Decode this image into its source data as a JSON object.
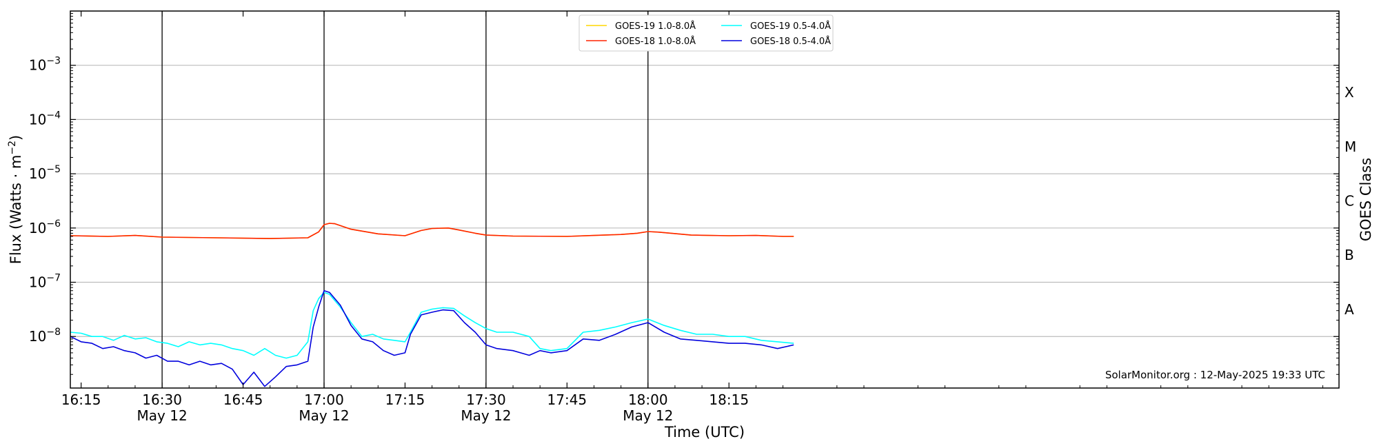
{
  "chart_data": {
    "type": "line",
    "xlabel": "Time (UTC)",
    "ylabel": "Flux (Watts · m",
    "ylabel_sup": "−2",
    "ylabel_tail": ")",
    "ylabel_right": "GOES Class",
    "credit": "SolarMonitor.org : 12-May-2025 19:33 UTC",
    "x_range_minutes": [
      973,
      1208
    ],
    "y_scale": "log",
    "y_range_log10": [
      -8.95,
      -2.0
    ],
    "y_ticks": [
      {
        "exp": -3,
        "label_base": "10",
        "label_exp": "−3"
      },
      {
        "exp": -4,
        "label_base": "10",
        "label_exp": "−4"
      },
      {
        "exp": -5,
        "label_base": "10",
        "label_exp": "−5"
      },
      {
        "exp": -6,
        "label_base": "10",
        "label_exp": "−6"
      },
      {
        "exp": -7,
        "label_base": "10",
        "label_exp": "−7"
      },
      {
        "exp": -8,
        "label_base": "10",
        "label_exp": "−8"
      }
    ],
    "x_ticks": [
      {
        "t": 975,
        "label": "16:15",
        "sub": ""
      },
      {
        "t": 990,
        "label": "16:30",
        "sub": "May 12"
      },
      {
        "t": 1005,
        "label": "16:45",
        "sub": ""
      },
      {
        "t": 1020,
        "label": "17:00",
        "sub": "May 12"
      },
      {
        "t": 1035,
        "label": "17:15",
        "sub": ""
      },
      {
        "t": 1050,
        "label": "17:30",
        "sub": "May 12"
      },
      {
        "t": 1065,
        "label": "17:45",
        "sub": ""
      },
      {
        "t": 1080,
        "label": "18:00",
        "sub": "May 12"
      },
      {
        "t": 1095,
        "label": "18:15",
        "sub": ""
      }
    ],
    "vertical_lines_minutes": [
      990,
      1020,
      1050,
      1080
    ],
    "goes_classes": [
      {
        "label": "X",
        "exp": -3.5
      },
      {
        "label": "M",
        "exp": -4.5
      },
      {
        "label": "C",
        "exp": -5.5
      },
      {
        "label": "B",
        "exp": -6.5
      },
      {
        "label": "A",
        "exp": -7.5
      }
    ],
    "legend_position": "top-center",
    "series": [
      {
        "name": "GOES-19 1.0-8.0Å",
        "color": "#ffd700",
        "x": [
          973,
          980,
          985,
          990,
          1000,
          1010,
          1017,
          1019,
          1020,
          1021,
          1022,
          1025,
          1030,
          1035,
          1038,
          1040,
          1043,
          1045,
          1048,
          1050,
          1055,
          1065,
          1070,
          1075,
          1078,
          1080,
          1082,
          1088,
          1095,
          1100,
          1105,
          1107
        ],
        "values": [
          7.2e-07,
          7e-07,
          7.3e-07,
          6.8e-07,
          6.6e-07,
          6.4e-07,
          6.6e-07,
          8.5e-07,
          1.15e-06,
          1.22e-06,
          1.2e-06,
          9.5e-07,
          7.8e-07,
          7.2e-07,
          9e-07,
          9.8e-07,
          1e-06,
          9.2e-07,
          8e-07,
          7.4e-07,
          7.1e-07,
          7e-07,
          7.3e-07,
          7.6e-07,
          8e-07,
          8.6e-07,
          8.4e-07,
          7.4e-07,
          7.2e-07,
          7.3e-07,
          7e-07,
          7e-07
        ]
      },
      {
        "name": "GOES-18 1.0-8.0Å",
        "color": "#ff2200",
        "x": [
          973,
          980,
          985,
          990,
          1000,
          1010,
          1017,
          1019,
          1020,
          1021,
          1022,
          1025,
          1030,
          1035,
          1038,
          1040,
          1043,
          1045,
          1048,
          1050,
          1055,
          1065,
          1070,
          1075,
          1078,
          1080,
          1082,
          1088,
          1095,
          1100,
          1105,
          1107
        ],
        "values": [
          7.2e-07,
          7e-07,
          7.3e-07,
          6.8e-07,
          6.6e-07,
          6.4e-07,
          6.6e-07,
          8.5e-07,
          1.15e-06,
          1.22e-06,
          1.2e-06,
          9.5e-07,
          7.8e-07,
          7.2e-07,
          9e-07,
          9.8e-07,
          1e-06,
          9.2e-07,
          8e-07,
          7.4e-07,
          7.1e-07,
          7e-07,
          7.3e-07,
          7.6e-07,
          8e-07,
          8.6e-07,
          8.4e-07,
          7.4e-07,
          7.2e-07,
          7.3e-07,
          7e-07,
          7e-07
        ]
      },
      {
        "name": "GOES-19 0.5-4.0Å",
        "color": "#00ffff",
        "x": [
          973,
          975,
          977,
          979,
          981,
          983,
          985,
          987,
          989,
          991,
          993,
          995,
          997,
          999,
          1001,
          1003,
          1005,
          1007,
          1009,
          1011,
          1013,
          1015,
          1017,
          1018,
          1019,
          1020,
          1021,
          1023,
          1025,
          1027,
          1029,
          1031,
          1033,
          1035,
          1036,
          1038,
          1040,
          1042,
          1044,
          1046,
          1048,
          1050,
          1052,
          1055,
          1058,
          1060,
          1062,
          1065,
          1068,
          1071,
          1074,
          1077,
          1080,
          1083,
          1086,
          1089,
          1092,
          1095,
          1098,
          1101,
          1104,
          1107
        ],
        "values": [
          1.2e-08,
          1.15e-08,
          1e-08,
          1e-08,
          8.5e-09,
          1.05e-08,
          9e-09,
          9.5e-09,
          8e-09,
          7.5e-09,
          6.5e-09,
          8e-09,
          7e-09,
          7.5e-09,
          7e-09,
          6e-09,
          5.5e-09,
          4.5e-09,
          6e-09,
          4.5e-09,
          4e-09,
          4.5e-09,
          8e-09,
          3e-08,
          5e-08,
          6.5e-08,
          6e-08,
          3.5e-08,
          1.8e-08,
          1e-08,
          1.1e-08,
          9e-09,
          8.5e-09,
          8e-09,
          1.2e-08,
          2.8e-08,
          3.2e-08,
          3.4e-08,
          3.3e-08,
          2.4e-08,
          1.8e-08,
          1.4e-08,
          1.2e-08,
          1.2e-08,
          1e-08,
          6e-09,
          5.5e-09,
          6e-09,
          1.2e-08,
          1.3e-08,
          1.5e-08,
          1.8e-08,
          2.1e-08,
          1.6e-08,
          1.3e-08,
          1.1e-08,
          1.1e-08,
          1e-08,
          1e-08,
          8.5e-09,
          8e-09,
          7.5e-09
        ]
      },
      {
        "name": "GOES-18 0.5-4.0Å",
        "color": "#0000dd",
        "x": [
          973,
          975,
          977,
          979,
          981,
          983,
          985,
          987,
          989,
          991,
          993,
          995,
          997,
          999,
          1001,
          1003,
          1005,
          1007,
          1009,
          1011,
          1013,
          1015,
          1017,
          1018,
          1019,
          1020,
          1021,
          1023,
          1025,
          1027,
          1029,
          1031,
          1033,
          1035,
          1036,
          1038,
          1040,
          1042,
          1044,
          1046,
          1048,
          1050,
          1052,
          1055,
          1058,
          1060,
          1062,
          1065,
          1068,
          1071,
          1074,
          1077,
          1080,
          1083,
          1086,
          1089,
          1092,
          1095,
          1098,
          1101,
          1104,
          1107
        ],
        "values": [
          1e-08,
          8e-09,
          7.5e-09,
          6e-09,
          6.5e-09,
          5.5e-09,
          5e-09,
          4e-09,
          4.5e-09,
          3.5e-09,
          3.5e-09,
          3e-09,
          3.5e-09,
          3e-09,
          3.2e-09,
          2.5e-09,
          1.3e-09,
          2.2e-09,
          1.2e-09,
          1.8e-09,
          2.8e-09,
          3e-09,
          3.5e-09,
          1.5e-08,
          3.5e-08,
          7e-08,
          6.5e-08,
          3.8e-08,
          1.6e-08,
          9e-09,
          8e-09,
          5.5e-09,
          4.5e-09,
          5e-09,
          1.1e-08,
          2.5e-08,
          2.8e-08,
          3.1e-08,
          3e-08,
          1.8e-08,
          1.2e-08,
          7e-09,
          6e-09,
          5.5e-09,
          4.5e-09,
          5.5e-09,
          5e-09,
          5.5e-09,
          9e-09,
          8.5e-09,
          1.1e-08,
          1.5e-08,
          1.8e-08,
          1.2e-08,
          9e-09,
          8.5e-09,
          8e-09,
          7.5e-09,
          7.5e-09,
          7e-09,
          6e-09,
          7e-09
        ]
      }
    ]
  }
}
